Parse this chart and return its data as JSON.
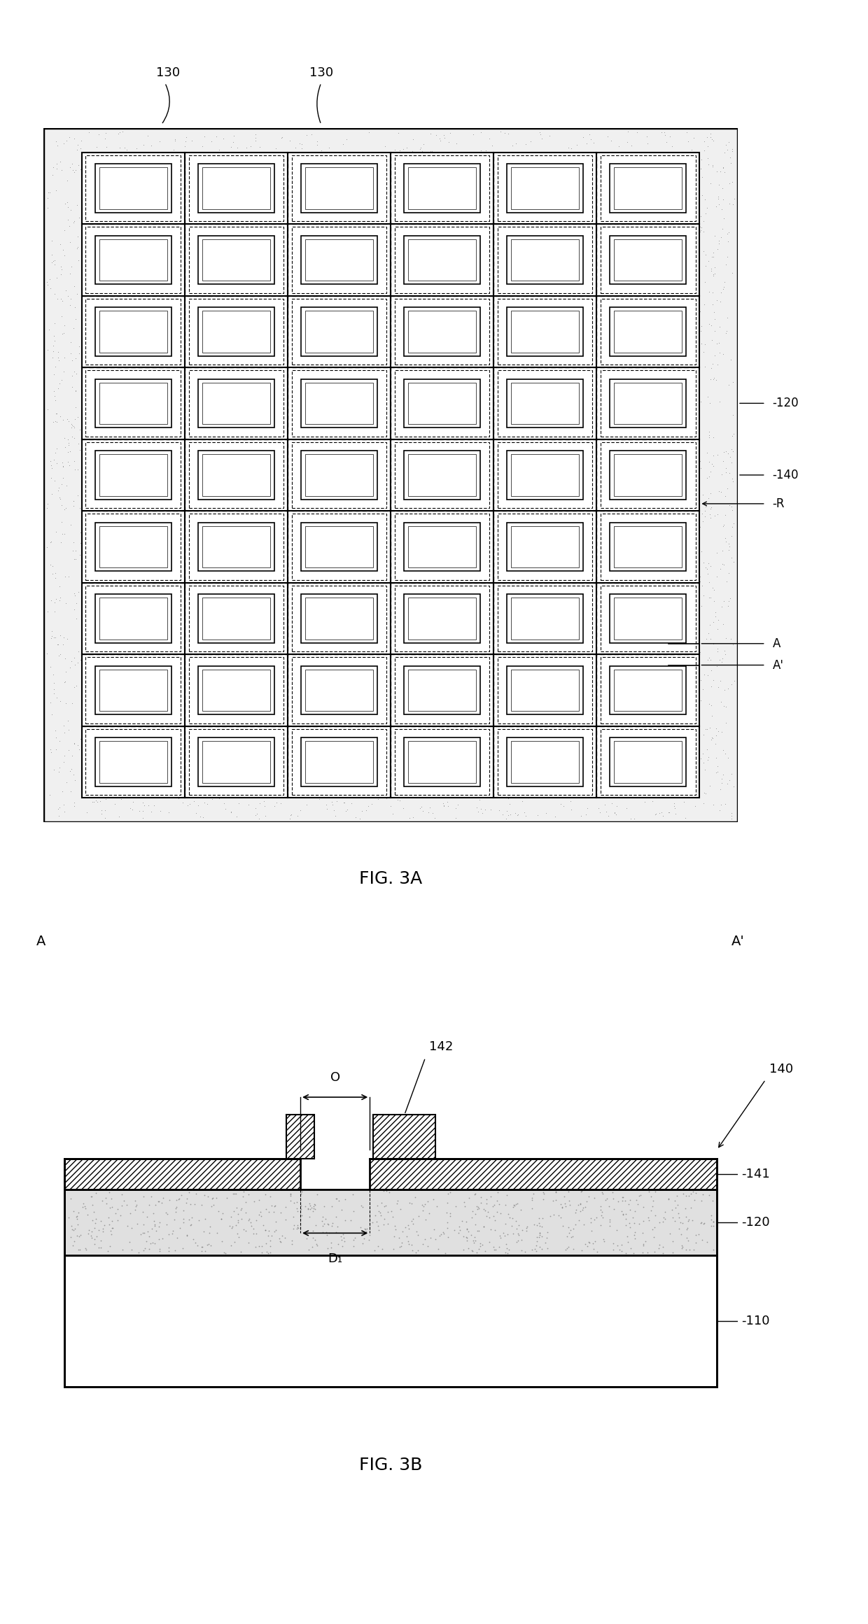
{
  "fig_width": 12.4,
  "fig_height": 23.21,
  "bg_color": "#ffffff",
  "grid_rows": 9,
  "grid_cols": 6,
  "fig3a_label": "FIG. 3A",
  "fig3b_label": "FIG. 3B",
  "labels_3a": {
    "130_left": "130",
    "130_right": "130",
    "120": "-120",
    "140": "-140",
    "R": "-R",
    "A": "A",
    "A_prime": "A'"
  },
  "labels_3b": {
    "A": "A",
    "A_prime": "A'",
    "140": "140",
    "141": "-141",
    "120": "-120",
    "110": "-110",
    "O": "O",
    "142": "142",
    "D1": "D₁"
  }
}
